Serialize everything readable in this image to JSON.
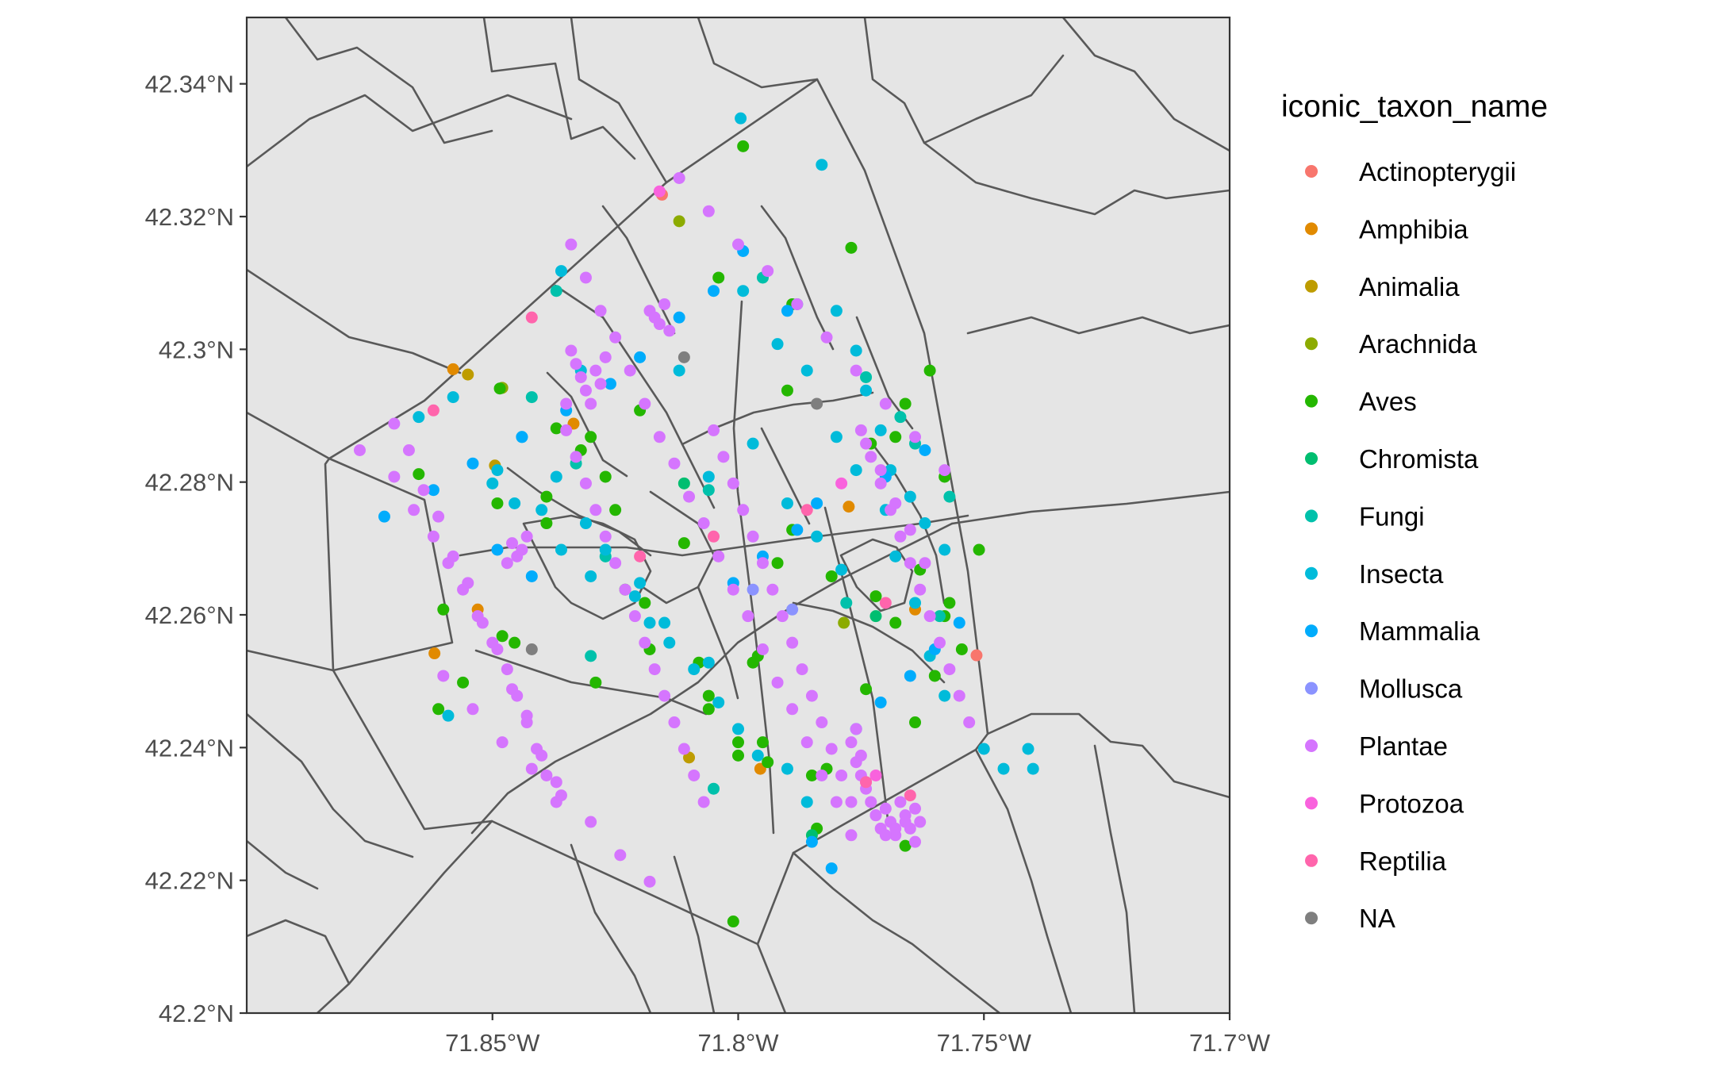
{
  "chart_data": {
    "type": "scatter",
    "title": "",
    "xlabel": "",
    "ylabel": "",
    "xlim": [
      -71.9,
      -71.7
    ],
    "ylim": [
      42.2,
      42.35
    ],
    "x_ticks": [
      -71.85,
      -71.8,
      -71.75,
      -71.7
    ],
    "x_tick_labels": [
      "71.85°W",
      "71.8°W",
      "71.75°W",
      "71.7°W"
    ],
    "y_ticks": [
      42.2,
      42.22,
      42.24,
      42.26,
      42.28,
      42.3,
      42.32,
      42.34
    ],
    "y_tick_labels": [
      "42.2°N",
      "42.22°N",
      "42.24°N",
      "42.26°N",
      "42.28°N",
      "42.3°N",
      "42.32°N",
      "42.34°N"
    ],
    "grid": false,
    "panel_background": "#e5e5e5",
    "boundary_color": "#595959",
    "legend": {
      "title": "iconic_taxon_name",
      "placement": "right",
      "entries": [
        {
          "label": "Actinopterygii",
          "color": "#F8766D"
        },
        {
          "label": "Amphibia",
          "color": "#E18A00"
        },
        {
          "label": "Animalia",
          "color": "#BE9C00"
        },
        {
          "label": "Arachnida",
          "color": "#8CAB00"
        },
        {
          "label": "Aves",
          "color": "#24B700"
        },
        {
          "label": "Chromista",
          "color": "#00BE70"
        },
        {
          "label": "Fungi",
          "color": "#00C1AB"
        },
        {
          "label": "Insecta",
          "color": "#00BBDA"
        },
        {
          "label": "Mammalia",
          "color": "#00ACFC"
        },
        {
          "label": "Mollusca",
          "color": "#8B93FF"
        },
        {
          "label": "Plantae",
          "color": "#D575FE"
        },
        {
          "label": "Protozoa",
          "color": "#F962DD"
        },
        {
          "label": "Reptilia",
          "color": "#FF65AC"
        },
        {
          "label": "NA",
          "color": "#7F7F7F"
        }
      ]
    },
    "series": [
      {
        "name": "Actinopterygii",
        "x": [
          -71.7515,
          -71.8155
        ],
        "y": [
          42.2539,
          42.3233
        ]
      },
      {
        "name": "Amphibia",
        "x": [
          -71.858,
          -71.8618,
          -71.853,
          -71.8335,
          -71.7775,
          -71.764,
          -71.7955
        ],
        "y": [
          42.297,
          42.2542,
          42.2608,
          42.2888,
          42.2763,
          42.2608,
          42.2368
        ]
      },
      {
        "name": "Animalia",
        "x": [
          -71.855,
          -71.8495,
          -71.81
        ],
        "y": [
          42.2962,
          42.2825,
          42.2385
        ]
      },
      {
        "name": "Arachnida",
        "x": [
          -71.848,
          -71.812,
          -71.7785
        ],
        "y": [
          42.2942,
          42.3193,
          42.2588
        ]
      },
      {
        "name": "Aves",
        "x": [
          -71.86,
          -71.8485,
          -71.865,
          -71.837,
          -71.849,
          -71.8455,
          -71.82,
          -71.83,
          -71.839,
          -71.832,
          -71.827,
          -71.811,
          -71.799,
          -71.804,
          -71.789,
          -71.79,
          -71.808,
          -71.792,
          -71.806,
          -71.8,
          -71.794,
          -71.785,
          -71.784,
          -71.777,
          -71.766,
          -71.773,
          -71.768,
          -71.761,
          -71.758,
          -71.751,
          -71.758,
          -71.76,
          -71.764,
          -71.782,
          -71.774,
          -71.789,
          -71.781,
          -71.796,
          -71.806,
          -71.8,
          -71.819,
          -71.829,
          -71.818,
          -71.823,
          -71.839,
          -71.825,
          -71.848,
          -71.856,
          -71.861,
          -71.766,
          -71.801,
          -71.795,
          -71.797,
          -71.772,
          -71.768,
          -71.763,
          -71.757,
          -71.7545
        ],
        "y": [
          42.2608,
          42.2941,
          42.2812,
          42.2881,
          42.2768,
          42.2558,
          42.2908,
          42.2868,
          42.2778,
          42.2848,
          42.2808,
          42.2708,
          42.3306,
          42.3108,
          42.3068,
          42.2938,
          42.2528,
          42.2678,
          42.2458,
          42.2388,
          42.2378,
          42.2358,
          42.2278,
          42.3153,
          42.2918,
          42.2858,
          42.2868,
          42.2968,
          42.2808,
          42.2698,
          42.2598,
          42.2508,
          42.2438,
          42.2368,
          42.2488,
          42.2728,
          42.2658,
          42.2538,
          42.2478,
          42.2408,
          42.2618,
          42.2498,
          42.2548,
          42.2638,
          42.2738,
          42.2758,
          42.2568,
          42.2498,
          42.2458,
          42.2252,
          42.2138,
          42.2408,
          42.2528,
          42.2628,
          42.2588,
          42.2668,
          42.2618,
          42.2548
        ]
      },
      {
        "name": "Chromista",
        "x": [
          -71.811,
          -71.772,
          -71.785
        ],
        "y": [
          42.2798,
          42.2598,
          42.2268
        ]
      },
      {
        "name": "Fungi",
        "x": [
          -71.842,
          -71.837,
          -71.806,
          -71.795,
          -71.788,
          -71.767,
          -71.764,
          -71.757,
          -71.827,
          -71.83,
          -71.833,
          -71.774,
          -71.778,
          -71.759,
          -71.805
        ],
        "y": [
          42.2928,
          42.3088,
          42.2788,
          42.3108,
          42.3068,
          42.2898,
          42.2858,
          42.2778,
          42.2688,
          42.2538,
          42.2828,
          42.2958,
          42.2618,
          42.2598,
          42.2338
        ]
      },
      {
        "name": "Insecta",
        "x": [
          -71.858,
          -71.865,
          -71.85,
          -71.8455,
          -71.84,
          -71.836,
          -71.83,
          -71.821,
          -71.818,
          -71.814,
          -71.809,
          -71.7995,
          -71.799,
          -71.792,
          -71.786,
          -71.78,
          -71.776,
          -71.77,
          -71.768,
          -71.764,
          -71.761,
          -71.758,
          -71.75,
          -71.746,
          -71.741,
          -71.74,
          -71.844,
          -71.837,
          -71.831,
          -71.827,
          -71.82,
          -71.815,
          -71.806,
          -71.804,
          -71.8,
          -71.796,
          -71.79,
          -71.786,
          -71.783,
          -71.78,
          -71.776,
          -71.774,
          -71.771,
          -71.769,
          -71.765,
          -71.762,
          -71.758,
          -71.859,
          -71.849,
          -71.836,
          -71.832,
          -71.812,
          -71.806,
          -71.797,
          -71.79,
          -71.784,
          -71.779
        ],
        "y": [
          42.2928,
          42.2898,
          42.2798,
          42.2768,
          42.2758,
          42.2698,
          42.2658,
          42.2628,
          42.2588,
          42.2558,
          42.2518,
          42.3348,
          42.3088,
          42.3008,
          42.2968,
          42.2868,
          42.2818,
          42.2758,
          42.2688,
          42.2618,
          42.2538,
          42.2478,
          42.2398,
          42.2368,
          42.2398,
          42.2368,
          42.2868,
          42.2808,
          42.2738,
          42.2698,
          42.2648,
          42.2588,
          42.2528,
          42.2468,
          42.2428,
          42.2388,
          42.2368,
          42.2318,
          42.3278,
          42.3058,
          42.2998,
          42.2938,
          42.2878,
          42.2818,
          42.2778,
          42.2738,
          42.2698,
          42.2448,
          42.2818,
          42.3118,
          42.2968,
          42.2968,
          42.2808,
          42.2858,
          42.2768,
          42.2718,
          42.2668
        ]
      },
      {
        "name": "Mammalia",
        "x": [
          -71.872,
          -71.862,
          -71.854,
          -71.844,
          -71.835,
          -71.826,
          -71.82,
          -71.812,
          -71.805,
          -71.799,
          -71.79,
          -71.785,
          -71.781,
          -71.776,
          -71.771,
          -71.765,
          -71.76,
          -71.755,
          -71.801,
          -71.795,
          -71.788,
          -71.784,
          -71.77,
          -71.762,
          -71.849,
          -71.842
        ],
        "y": [
          42.2748,
          42.2788,
          42.2828,
          42.2868,
          42.2908,
          42.2948,
          42.2988,
          42.3048,
          42.3088,
          42.3148,
          42.3058,
          42.2258,
          42.2218,
          42.2428,
          42.2468,
          42.2508,
          42.2548,
          42.2588,
          42.2648,
          42.2688,
          42.2728,
          42.2768,
          42.2808,
          42.2848,
          42.2698,
          42.2658
        ]
      },
      {
        "name": "Mollusca",
        "x": [
          -71.797,
          -71.789
        ],
        "y": [
          42.2638,
          42.2608
        ]
      },
      {
        "name": "Plantae",
        "x": [
          -71.877,
          -71.87,
          -71.866,
          -71.862,
          -71.859,
          -71.856,
          -71.853,
          -71.85,
          -71.847,
          -71.845,
          -71.843,
          -71.841,
          -71.839,
          -71.837,
          -71.835,
          -71.833,
          -71.831,
          -71.829,
          -71.827,
          -71.825,
          -71.823,
          -71.821,
          -71.819,
          -71.817,
          -71.815,
          -71.813,
          -71.811,
          -71.809,
          -71.807,
          -71.805,
          -71.803,
          -71.801,
          -71.799,
          -71.797,
          -71.795,
          -71.793,
          -71.791,
          -71.789,
          -71.787,
          -71.785,
          -71.783,
          -71.781,
          -71.779,
          -71.777,
          -71.775,
          -71.773,
          -71.771,
          -71.769,
          -71.767,
          -71.765,
          -71.763,
          -71.761,
          -71.759,
          -71.757,
          -71.755,
          -71.753,
          -71.87,
          -71.867,
          -71.864,
          -71.861,
          -71.858,
          -71.855,
          -71.852,
          -71.849,
          -71.846,
          -71.843,
          -71.84,
          -71.837,
          -71.834,
          -71.831,
          -71.828,
          -71.825,
          -71.822,
          -71.819,
          -71.816,
          -71.813,
          -71.81,
          -71.807,
          -71.804,
          -71.801,
          -71.798,
          -71.795,
          -71.792,
          -71.789,
          -71.786,
          -71.783,
          -71.78,
          -71.777,
          -71.774,
          -71.771,
          -71.768,
          -71.765,
          -71.762,
          -71.86,
          -71.854,
          -71.848,
          -71.842,
          -71.836,
          -71.83,
          -71.824,
          -71.818,
          -71.812,
          -71.806,
          -71.8,
          -71.794,
          -71.788,
          -71.782,
          -71.776,
          -71.77,
          -71.764,
          -71.758,
          -71.833,
          -71.832,
          -71.831,
          -71.83,
          -71.829,
          -71.828,
          -71.827,
          -71.834,
          -71.835,
          -71.846,
          -71.845,
          -71.844,
          -71.847,
          -71.843,
          -71.818,
          -71.817,
          -71.816,
          -71.815,
          -71.814,
          -71.777,
          -71.776,
          -71.775,
          -71.774,
          -71.773,
          -71.772,
          -71.771,
          -71.77,
          -71.769,
          -71.768,
          -71.767,
          -71.766,
          -71.765,
          -71.764,
          -71.763,
          -71.776,
          -71.775,
          -71.774,
          -71.772,
          -71.77,
          -71.768,
          -71.766,
          -71.764
        ],
        "y": [
          42.2848,
          42.2808,
          42.2758,
          42.2718,
          42.2678,
          42.2638,
          42.2598,
          42.2558,
          42.2518,
          42.2478,
          42.2438,
          42.2398,
          42.2358,
          42.2318,
          42.2878,
          42.2838,
          42.2798,
          42.2758,
          42.2718,
          42.2678,
          42.2638,
          42.2598,
          42.2558,
          42.2518,
          42.2478,
          42.2438,
          42.2398,
          42.2358,
          42.2318,
          42.2878,
          42.2838,
          42.2798,
          42.2758,
          42.2718,
          42.2678,
          42.2638,
          42.2598,
          42.2558,
          42.2518,
          42.2478,
          42.2438,
          42.2398,
          42.2358,
          42.2318,
          42.2878,
          42.2838,
          42.2798,
          42.2758,
          42.2718,
          42.2678,
          42.2638,
          42.2598,
          42.2558,
          42.2518,
          42.2478,
          42.2438,
          42.2888,
          42.2848,
          42.2788,
          42.2748,
          42.2688,
          42.2648,
          42.2588,
          42.2548,
          42.2488,
          42.2448,
          42.2388,
          42.2348,
          42.3158,
          42.3108,
          42.3058,
          42.3018,
          42.2968,
          42.2918,
          42.2868,
          42.2828,
          42.2778,
          42.2738,
          42.2688,
          42.2638,
          42.2598,
          42.2548,
          42.2498,
          42.2458,
          42.2408,
          42.2358,
          42.2318,
          42.2268,
          42.2858,
          42.2818,
          42.2768,
          42.2728,
          42.2678,
          42.2508,
          42.2458,
          42.2408,
          42.2368,
          42.2328,
          42.2288,
          42.2238,
          42.2198,
          42.3258,
          42.3208,
          42.3158,
          42.3118,
          42.3068,
          42.3018,
          42.2968,
          42.2918,
          42.2868,
          42.2818,
          42.2978,
          42.2958,
          42.2938,
          42.2918,
          42.2968,
          42.2948,
          42.2988,
          42.2998,
          42.2918,
          42.2708,
          42.2688,
          42.2698,
          42.2678,
          42.2718,
          42.3058,
          42.3048,
          42.3038,
          42.3068,
          42.3028,
          42.2408,
          42.2378,
          42.2358,
          42.2338,
          42.2318,
          42.2298,
          42.2278,
          42.2308,
          42.2288,
          42.2268,
          42.2318,
          42.2298,
          42.2278,
          42.2258,
          42.2288,
          42.2428,
          42.2388,
          42.2348,
          42.2298,
          42.2268,
          42.2278,
          42.2288,
          42.2308
        ]
      },
      {
        "name": "Protozoa",
        "x": [
          -71.816,
          -71.779,
          -71.772
        ],
        "y": [
          42.3238,
          42.2798,
          42.2358
        ]
      },
      {
        "name": "Reptilia",
        "x": [
          -71.842,
          -71.862,
          -71.82,
          -71.805,
          -71.786,
          -71.774,
          -71.77,
          -71.765
        ],
        "y": [
          42.3048,
          42.2908,
          42.2688,
          42.2718,
          42.2758,
          42.2348,
          42.2618,
          42.2328
        ]
      },
      {
        "name": "NA",
        "x": [
          -71.811,
          -71.784,
          -71.842
        ],
        "y": [
          42.2988,
          42.2918,
          42.2548
        ]
      }
    ]
  }
}
